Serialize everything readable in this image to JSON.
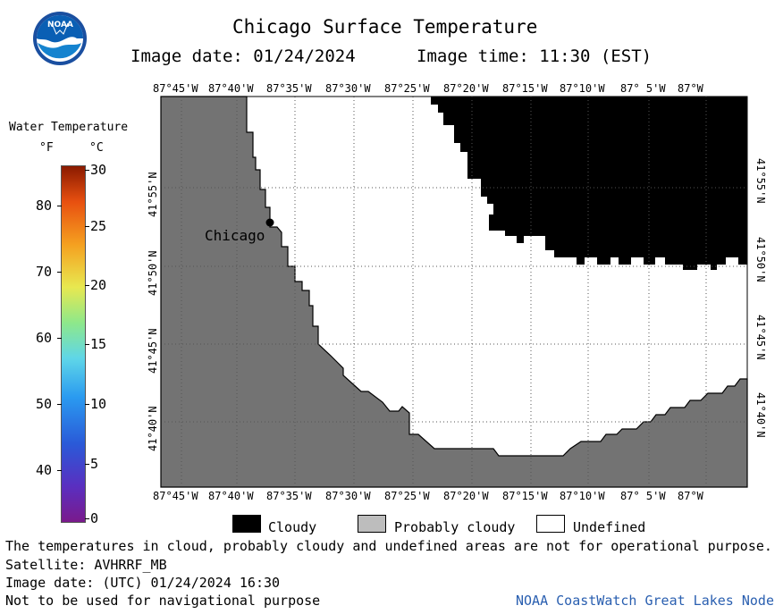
{
  "header": {
    "title": "Chicago Surface Temperature",
    "image_date_label": "Image date: 01/24/2024",
    "image_time_label": "Image time: 11:30 (EST)",
    "logo_text": "NOAA"
  },
  "colorbar": {
    "title": "Water Temperature",
    "unit_f": "°F",
    "unit_c": "°C",
    "f_ticks": [
      "80",
      "70",
      "60",
      "50",
      "40"
    ],
    "c_ticks": [
      "30",
      "25",
      "20",
      "15",
      "10",
      "5",
      "0"
    ]
  },
  "map": {
    "lon_labels": [
      "87°45'W",
      "87°40'W",
      "87°35'W",
      "87°30'W",
      "87°25'W",
      "87°20'W",
      "87°15'W",
      "87°10'W",
      "87° 5'W",
      "87°W"
    ],
    "lat_labels": [
      "41°55'N",
      "41°50'N",
      "41°45'N",
      "41°40'N"
    ],
    "city_label": "Chicago",
    "colors": {
      "land": "#737373",
      "cloudy": "#000000",
      "undefined": "#ffffff",
      "probably_cloudy": "#bdbdbd"
    }
  },
  "legend": {
    "cloudy": "Cloudy",
    "probably_cloudy": "Probably cloudy",
    "undefined": "Undefined"
  },
  "footer": {
    "disclaimer": "The temperatures in cloud, probably cloudy and undefined areas are not for operational purpose.",
    "satellite": "Satellite: AVHRRF_MB",
    "utc_date": "Image date: (UTC) 01/24/2024  16:30",
    "nav_warning": "Not to be used for navigational purpose",
    "credit": "NOAA CoastWatch Great Lakes Node"
  }
}
